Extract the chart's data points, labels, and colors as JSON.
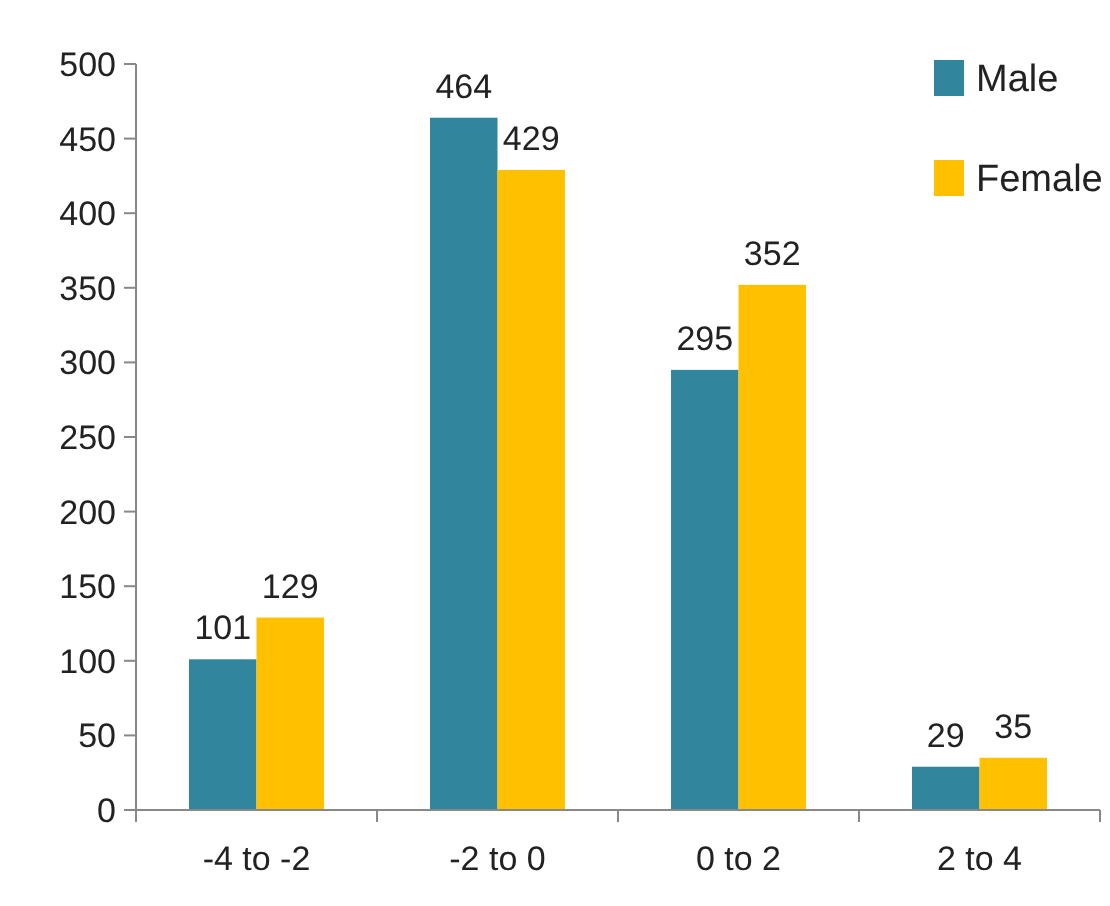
{
  "chart_data": {
    "type": "bar",
    "categories": [
      "-4 to -2",
      "-2 to 0",
      "0 to 2",
      "2 to 4"
    ],
    "series": [
      {
        "name": "Male",
        "color": "#31859c",
        "values": [
          101,
          464,
          295,
          29
        ]
      },
      {
        "name": "Female",
        "color": "#ffc000",
        "values": [
          129,
          429,
          352,
          35
        ]
      }
    ],
    "ylim": [
      0,
      500
    ],
    "yticks": [
      0,
      50,
      100,
      150,
      200,
      250,
      300,
      350,
      400,
      450,
      500
    ],
    "grid": false,
    "legend": "top right",
    "data_labels": true
  }
}
